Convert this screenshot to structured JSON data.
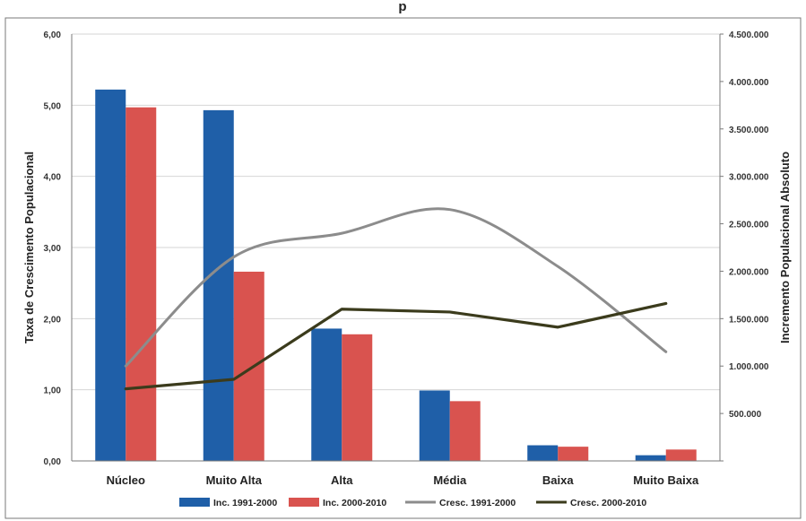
{
  "header": {
    "title_fragment": "p"
  },
  "chart_data": {
    "type": "bar",
    "title": "",
    "xlabel": "",
    "ylabel": "Taxa de Crescimento Populacional",
    "y2label": "Incremento Populacional Absoluto",
    "categories": [
      "Núcleo",
      "Muito Alta",
      "Alta",
      "Média",
      "Baixa",
      "Muito Baixa"
    ],
    "ylim": [
      0,
      6
    ],
    "y2lim": [
      0,
      4500000
    ],
    "yticks": [
      "0,00",
      "1,00",
      "2,00",
      "3,00",
      "4,00",
      "5,00",
      "6,00"
    ],
    "y2ticks": [
      "",
      "500.000",
      "1.000.000",
      "1.500.000",
      "2.000.000",
      "2.500.000",
      "3.000.000",
      "3.500.000",
      "4.000.000",
      "4.500.000"
    ],
    "grid": true,
    "legend_position": "bottom",
    "series": [
      {
        "name": "Inc. 1991-2000",
        "kind": "bar",
        "axis": "left",
        "color": "#1f5fa8",
        "values": [
          5.22,
          4.93,
          1.86,
          0.99,
          0.22,
          0.08
        ]
      },
      {
        "name": "Inc. 2000-2010",
        "kind": "bar",
        "axis": "left",
        "color": "#d9534f",
        "values": [
          4.97,
          2.66,
          1.78,
          0.84,
          0.2,
          0.16
        ]
      },
      {
        "name": "Cresc. 1991-2000",
        "kind": "line",
        "axis": "right",
        "color": "#8c8c8c",
        "values": [
          1000000,
          2150000,
          2400000,
          2650000,
          2050000,
          1150000
        ]
      },
      {
        "name": "Cresc. 2000-2010",
        "kind": "line",
        "axis": "right",
        "color": "#3b3b1c",
        "values": [
          760000,
          860000,
          1600000,
          1570000,
          1410000,
          1660000
        ]
      }
    ]
  }
}
